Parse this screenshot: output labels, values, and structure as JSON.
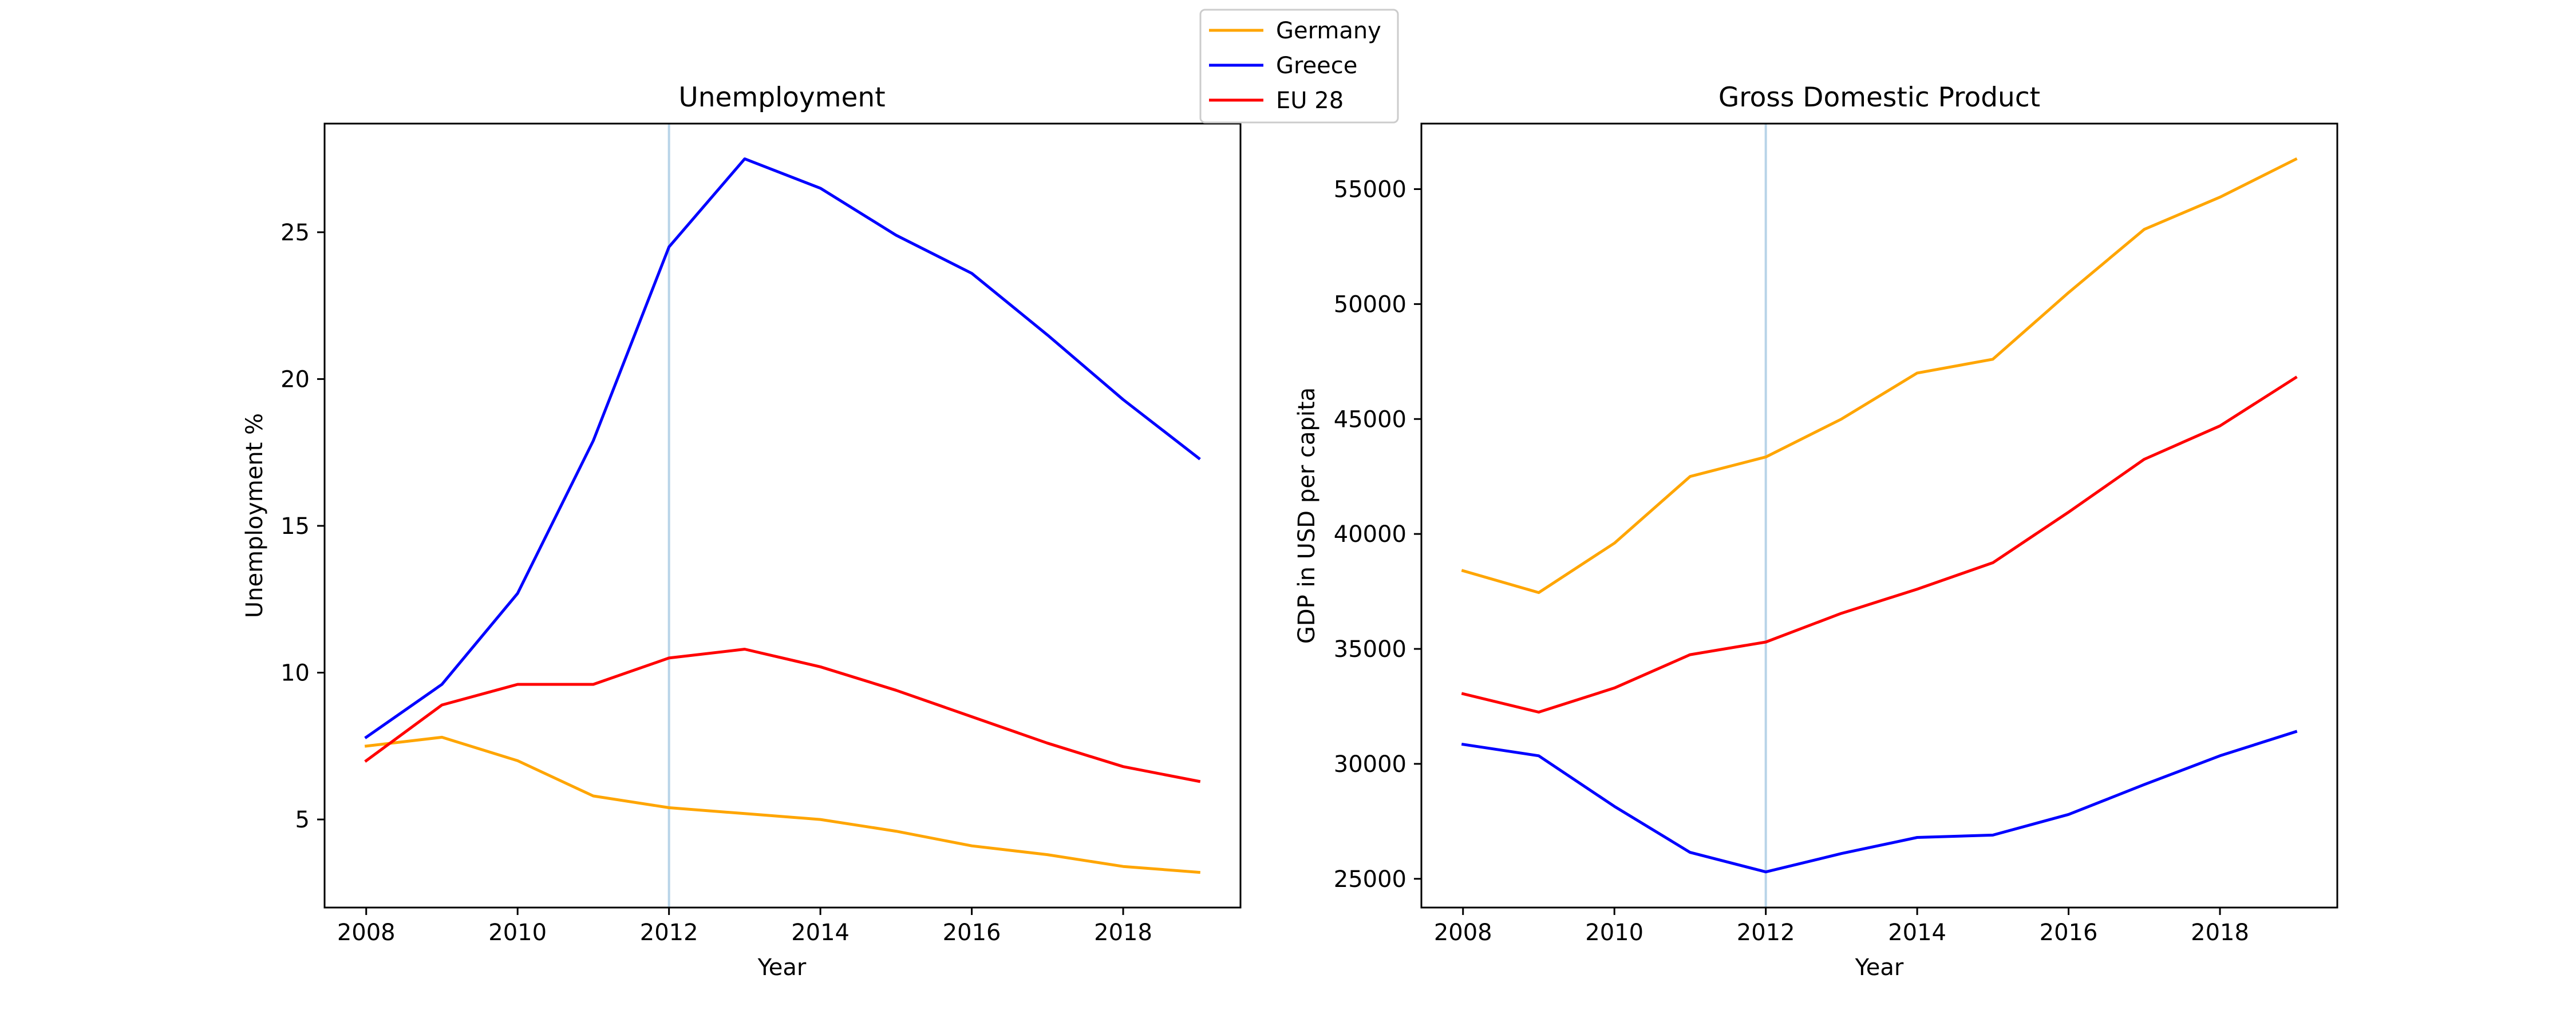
{
  "legend": {
    "entries": [
      {
        "label": "Germany",
        "color": "#FFA500"
      },
      {
        "label": "Greece",
        "color": "#0000FF"
      },
      {
        "label": "EU 28",
        "color": "#FF0000"
      }
    ],
    "placement": "top-center"
  },
  "chart_data": [
    {
      "type": "line",
      "title": "Unemployment",
      "xlabel": "Year",
      "ylabel": "Unemployment %",
      "x": [
        2008,
        2009,
        2010,
        2011,
        2012,
        2013,
        2014,
        2015,
        2016,
        2017,
        2018,
        2019
      ],
      "xlim": [
        2007.45,
        2019.55
      ],
      "ylim": [
        2.0,
        28.7
      ],
      "xticks": [
        2008,
        2010,
        2012,
        2014,
        2016,
        2018
      ],
      "yticks": [
        5,
        10,
        15,
        20,
        25
      ],
      "grid": false,
      "vline": {
        "x": 2012,
        "color": "#B8D4E8"
      },
      "series": [
        {
          "name": "Germany",
          "color": "#FFA500",
          "values": [
            7.5,
            7.8,
            7.0,
            5.8,
            5.4,
            5.2,
            5.0,
            4.6,
            4.1,
            3.8,
            3.4,
            3.2
          ]
        },
        {
          "name": "Greece",
          "color": "#0000FF",
          "values": [
            7.8,
            9.6,
            12.7,
            17.9,
            24.5,
            27.5,
            26.5,
            24.9,
            23.6,
            21.5,
            19.3,
            17.3
          ]
        },
        {
          "name": "EU 28",
          "color": "#FF0000",
          "values": [
            7.0,
            8.9,
            9.6,
            9.6,
            10.5,
            10.8,
            10.2,
            9.4,
            8.5,
            7.6,
            6.8,
            6.3
          ]
        }
      ]
    },
    {
      "type": "line",
      "title": "Gross Domestic Product",
      "xlabel": "Year",
      "ylabel": "GDP in USD per capita",
      "x": [
        2008,
        2009,
        2010,
        2011,
        2012,
        2013,
        2014,
        2015,
        2016,
        2017,
        2018,
        2019
      ],
      "xlim": [
        2007.45,
        2019.55
      ],
      "ylim": [
        23750,
        57850
      ],
      "xticks": [
        2008,
        2010,
        2012,
        2014,
        2016,
        2018
      ],
      "yticks": [
        25000,
        30000,
        35000,
        40000,
        45000,
        50000,
        55000
      ],
      "grid": false,
      "vline": {
        "x": 2012,
        "color": "#B8D4E8"
      },
      "series": [
        {
          "name": "Germany",
          "color": "#FFA500",
          "values": [
            38400,
            37450,
            39600,
            42500,
            43350,
            45000,
            47000,
            47600,
            50500,
            53250,
            54650,
            56300
          ]
        },
        {
          "name": "Greece",
          "color": "#0000FF",
          "values": [
            30850,
            30350,
            28150,
            26150,
            25300,
            26100,
            26800,
            26900,
            27800,
            29100,
            30350,
            31400
          ]
        },
        {
          "name": "EU 28",
          "color": "#FF0000",
          "values": [
            33050,
            32250,
            33300,
            34750,
            35300,
            36550,
            37600,
            38750,
            40950,
            43250,
            44700,
            46800
          ]
        }
      ]
    }
  ]
}
